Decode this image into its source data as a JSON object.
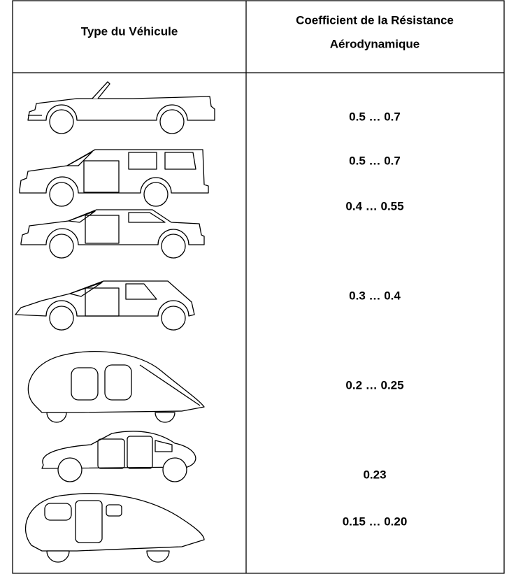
{
  "table": {
    "headers": {
      "vehicle": "Type du Véhicule",
      "coefficient": [
        "Coefficient de la Résistance",
        "Aérodynamique"
      ]
    },
    "rows": [
      "0.5 … 0.7",
      "0.5 … 0.7",
      "0.4 … 0.55",
      "0.3 … 0.4",
      "0.2 … 0.25",
      "0.23",
      "0.15 … 0.20"
    ]
  }
}
